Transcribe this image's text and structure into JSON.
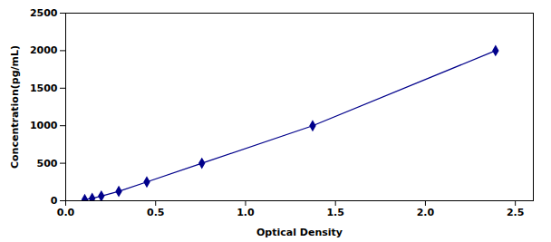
{
  "chart_data": {
    "type": "line",
    "x": [
      0.106,
      0.147,
      0.198,
      0.295,
      0.451,
      0.757,
      1.373,
      2.39
    ],
    "values": [
      15.6,
      31.2,
      62.5,
      125,
      250,
      500,
      1000,
      2000
    ],
    "color": "#00008B",
    "marker": "diamond",
    "line_style": "solid",
    "xlabel": "Optical Density",
    "ylabel": "Concentration(pg/mL)",
    "xlim": [
      0.0,
      2.6
    ],
    "ylim": [
      0,
      2500
    ],
    "xticks": [
      {
        "value": 0,
        "label": "0.0"
      },
      0.5,
      {
        "value": 1,
        "label": "1.0"
      },
      1.5,
      {
        "value": 2,
        "label": "2.0"
      },
      2.5
    ],
    "yticks": [
      0,
      500,
      1000,
      1500,
      2000,
      2500
    ],
    "grid": false
  }
}
